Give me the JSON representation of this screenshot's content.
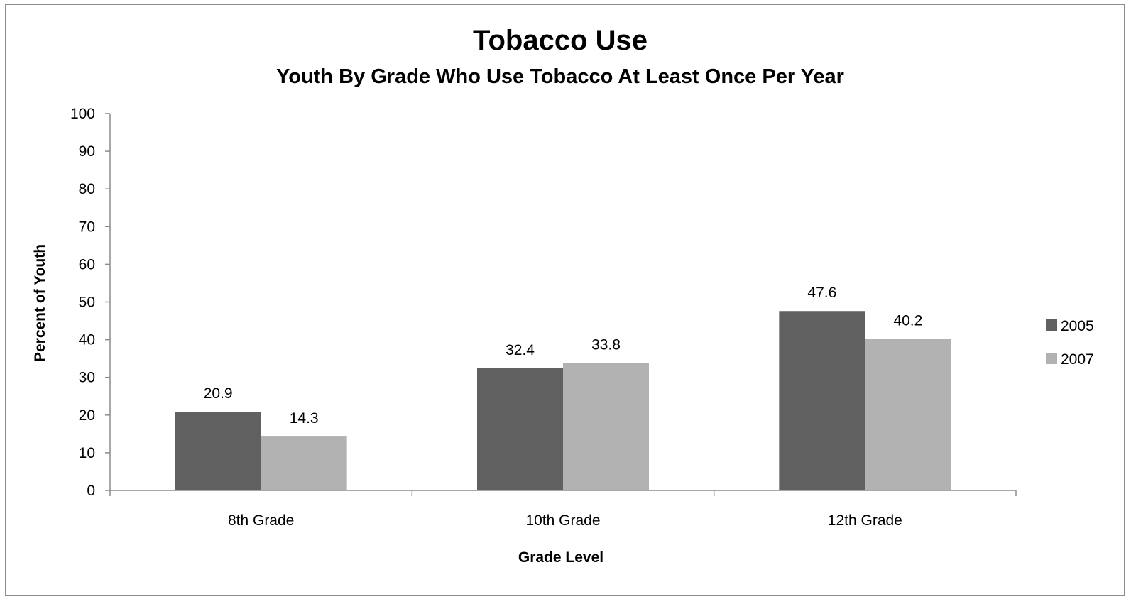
{
  "chart_data": {
    "type": "bar",
    "title": "Tobacco Use",
    "subtitle": "Youth By Grade Who Use Tobacco At Least Once Per Year",
    "xlabel": "Grade Level",
    "ylabel": "Percent of Youth",
    "categories": [
      "8th Grade",
      "10th Grade",
      "12th Grade"
    ],
    "series": [
      {
        "name": "2005",
        "values": [
          20.9,
          32.4,
          47.6
        ],
        "color": "#606060"
      },
      {
        "name": "2007",
        "values": [
          14.3,
          33.8,
          40.2
        ],
        "color": "#b2b2b2"
      }
    ],
    "ylim": [
      0,
      100
    ],
    "yticks": [
      0,
      10,
      20,
      30,
      40,
      50,
      60,
      70,
      80,
      90,
      100
    ],
    "data_labels": [
      "20.9",
      "14.3",
      "32.4",
      "33.8",
      "47.6",
      "40.2"
    ],
    "grid": false,
    "legend_position": "right"
  }
}
